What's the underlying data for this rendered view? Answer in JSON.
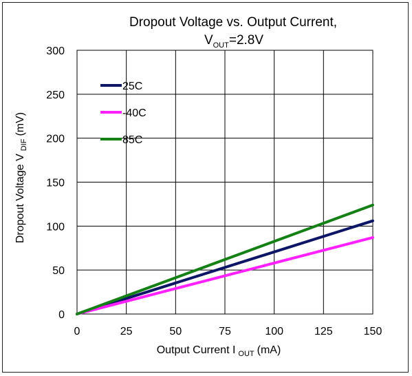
{
  "chart_data": {
    "type": "line",
    "title_main": "Dropout Voltage vs. Output Current,",
    "title_line2_prefix": "V",
    "title_line2_sub": "OUT",
    "title_line2_suffix": "=2.8V",
    "xlabel_main": "Output Current I",
    "xlabel_sub": "OUT",
    "xlabel_suffix": "(mA)",
    "ylabel_main": "Dropout Voltage V",
    "ylabel_sub": "DIF",
    "ylabel_suffix": "(mV)",
    "xlim": [
      0,
      150
    ],
    "ylim": [
      0,
      300
    ],
    "xticks": [
      0,
      25,
      50,
      75,
      100,
      125,
      150
    ],
    "yticks": [
      0,
      50,
      100,
      150,
      200,
      250,
      300
    ],
    "grid": true,
    "legend_position": "top-left",
    "series": [
      {
        "name": "25C",
        "color": "#0d1566",
        "x": [
          0,
          150
        ],
        "y": [
          0,
          106
        ]
      },
      {
        "name": "-40C",
        "color": "#ff22ff",
        "x": [
          0,
          150
        ],
        "y": [
          0,
          87
        ]
      },
      {
        "name": "85C",
        "color": "#158015",
        "x": [
          0,
          150
        ],
        "y": [
          0,
          124
        ]
      }
    ]
  }
}
